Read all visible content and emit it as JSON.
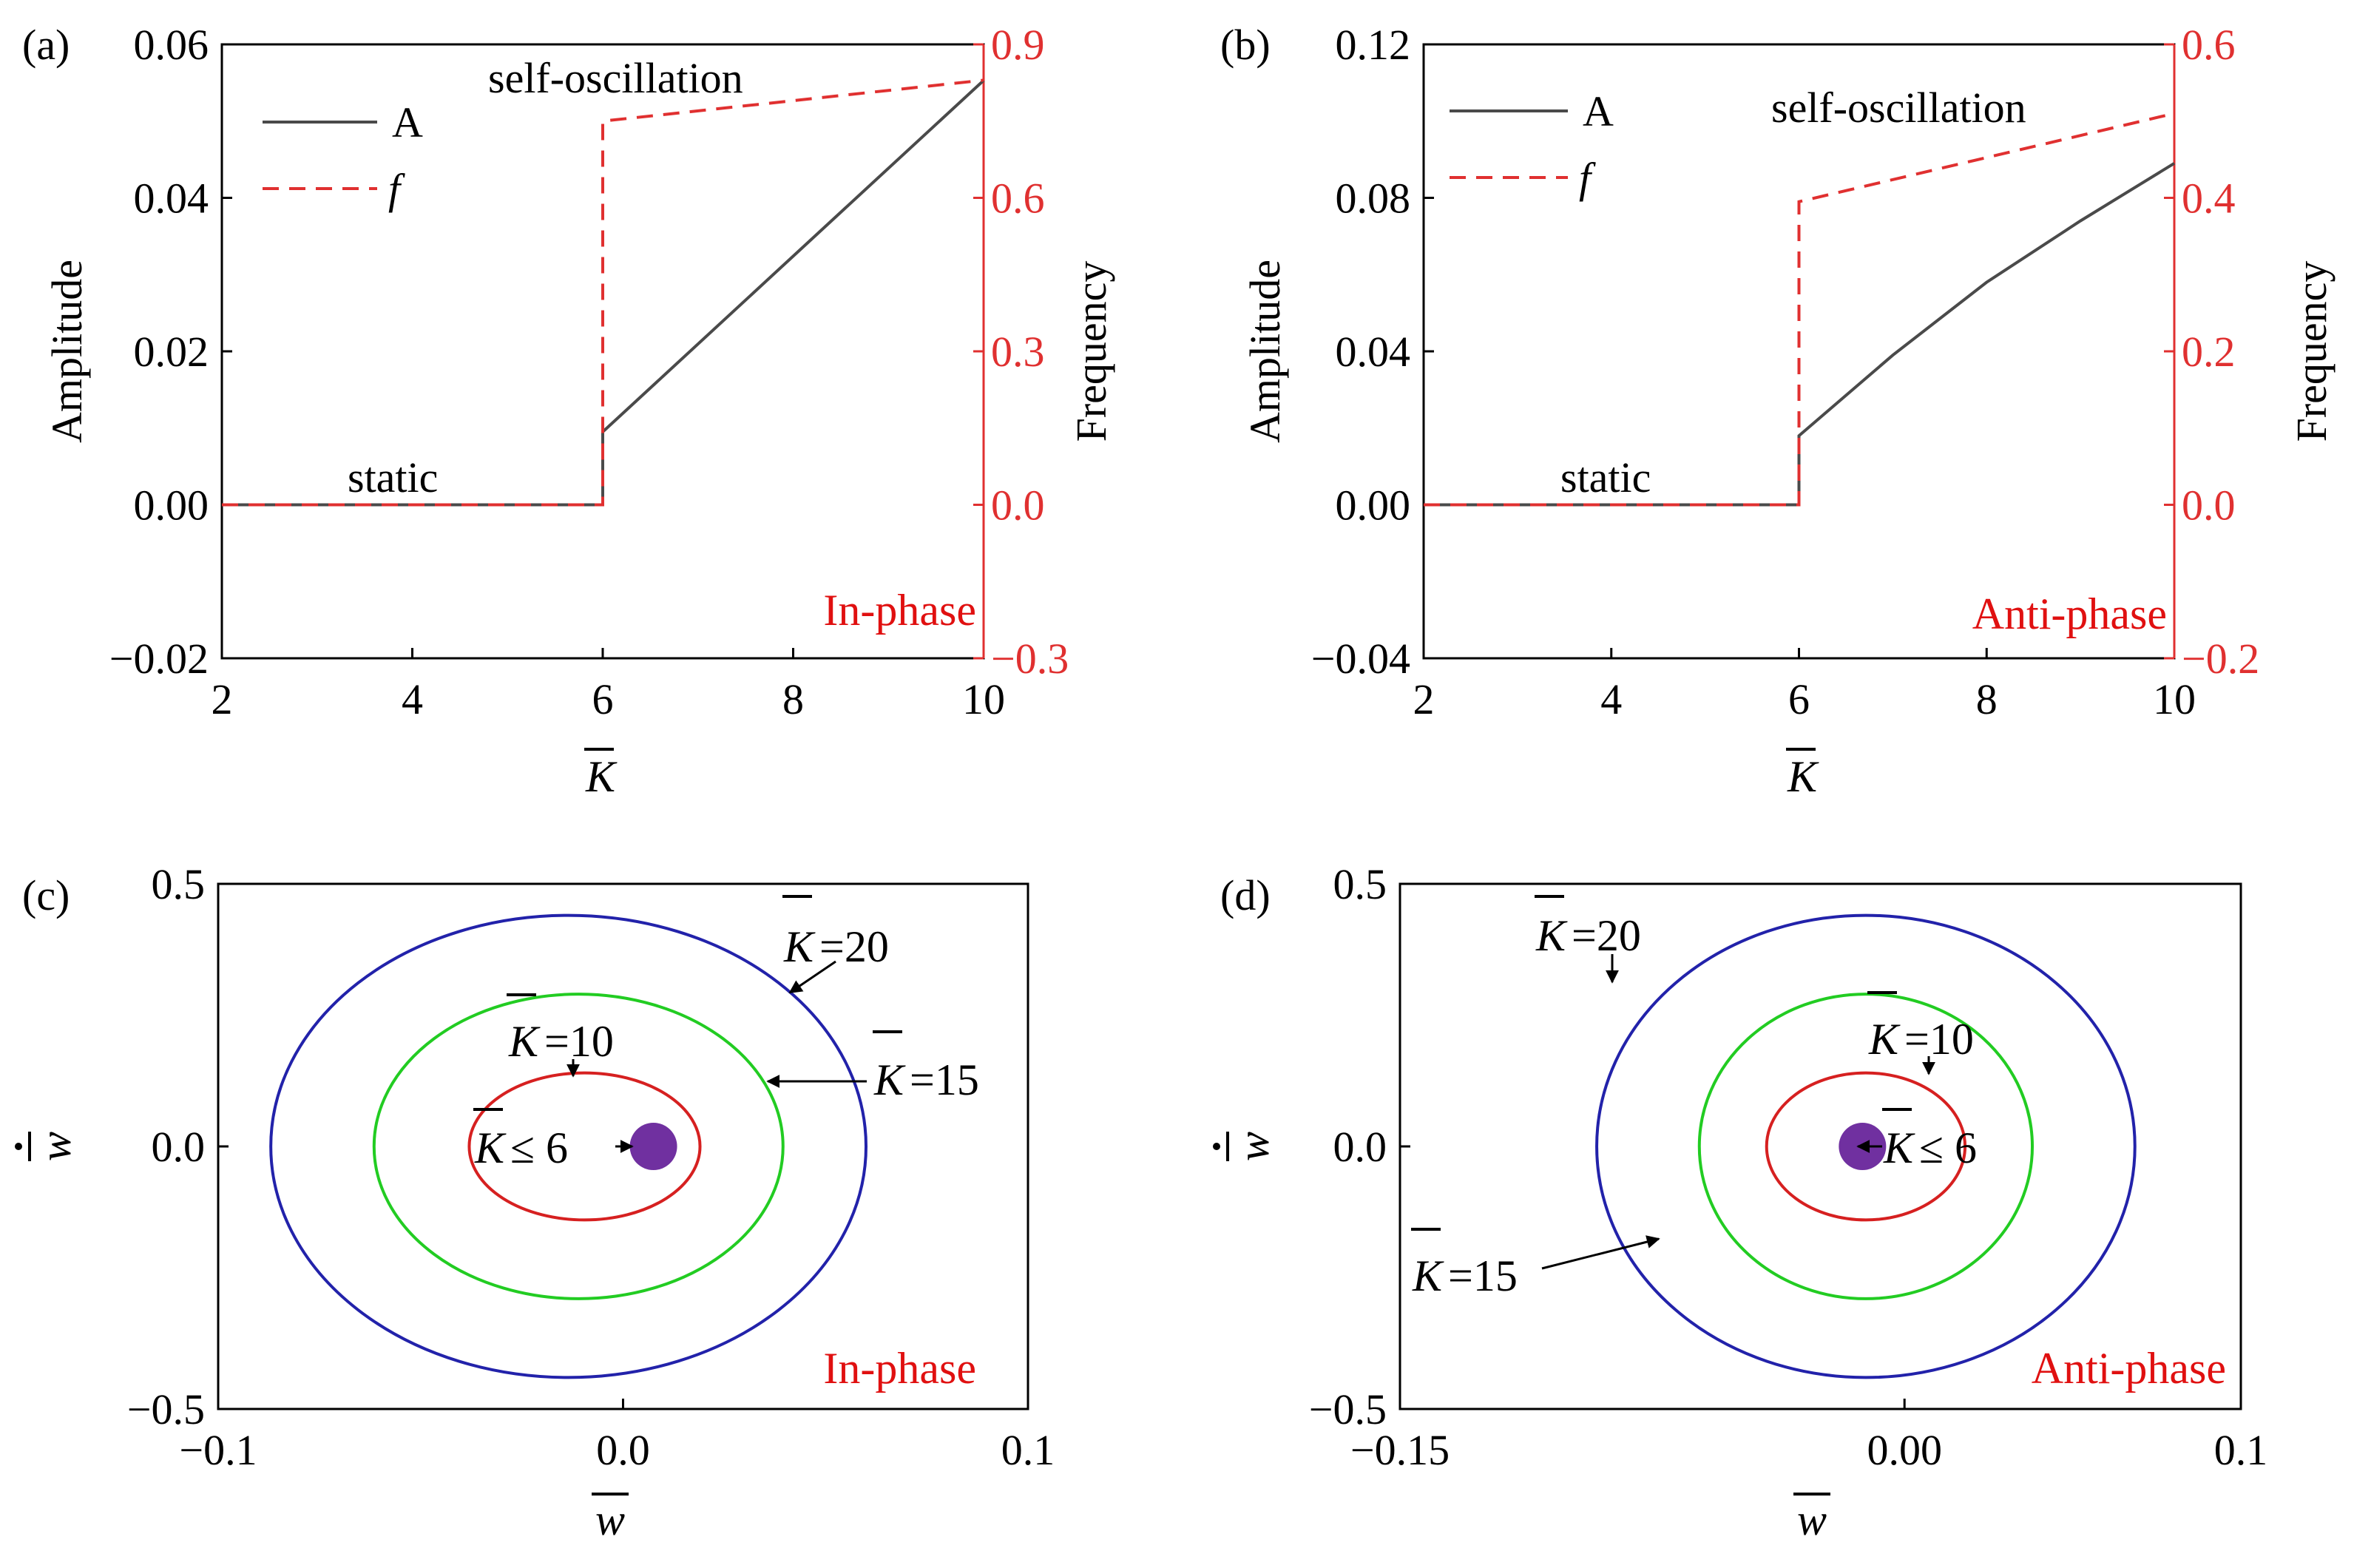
{
  "colors": {
    "amplitude": "#4a4a4a",
    "frequency": "#e03030",
    "axis": "#000000",
    "phase_label": "#e01010",
    "k20": "#2222aa",
    "k15": "#22cc22",
    "k10": "#d62020",
    "dot": "#7030a0"
  },
  "chart_data": [
    {
      "id": "a",
      "panel_label": "(a)",
      "type": "line",
      "title": "",
      "xlabel_symbol": "K",
      "ylabel": "Amplitude",
      "y2label": "Frequency",
      "xlim": [
        2,
        10
      ],
      "ylim": [
        -0.02,
        0.06
      ],
      "y2lim": [
        -0.3,
        0.9
      ],
      "x_ticks": [
        "2",
        "4",
        "6",
        "8",
        "10"
      ],
      "y_ticks": [
        "−0.02",
        "0.00",
        "0.02",
        "0.04",
        "0.06"
      ],
      "y2_ticks": [
        "−0.3",
        "0.0",
        "0.3",
        "0.6",
        "0.9"
      ],
      "legend": [
        "A",
        "f"
      ],
      "annotations": {
        "top": "self-oscillation",
        "static": "static",
        "phase": "In-phase"
      },
      "series": [
        {
          "name": "A",
          "axis": "left",
          "style": "solid",
          "x": [
            2,
            6,
            6,
            10
          ],
          "y": [
            0,
            0,
            0.0095,
            0.0553
          ]
        },
        {
          "name": "f",
          "axis": "right",
          "style": "dashed",
          "x": [
            2,
            6,
            6,
            10
          ],
          "y": [
            0,
            0,
            0.75,
            0.83
          ]
        }
      ]
    },
    {
      "id": "b",
      "panel_label": "(b)",
      "type": "line",
      "title": "",
      "xlabel_symbol": "K",
      "ylabel": "Amplitude",
      "y2label": "Frequency",
      "xlim": [
        2,
        10
      ],
      "ylim": [
        -0.04,
        0.12
      ],
      "y2lim": [
        -0.2,
        0.6
      ],
      "x_ticks": [
        "2",
        "4",
        "6",
        "8",
        "10"
      ],
      "y_ticks": [
        "−0.04",
        "0.00",
        "0.04",
        "0.08",
        "0.12"
      ],
      "y2_ticks": [
        "−0.2",
        "0.0",
        "0.2",
        "0.4",
        "0.6"
      ],
      "legend": [
        "A",
        "f"
      ],
      "annotations": {
        "top": "self-oscillation",
        "static": "static",
        "phase": "Anti-phase"
      },
      "series": [
        {
          "name": "A",
          "axis": "left",
          "style": "solid",
          "x": [
            2,
            6,
            6,
            7,
            8,
            9,
            10
          ],
          "y": [
            0,
            0,
            0.018,
            0.039,
            0.058,
            0.074,
            0.089
          ]
        },
        {
          "name": "f",
          "axis": "right",
          "style": "dashed",
          "x": [
            2,
            6,
            6,
            10
          ],
          "y": [
            0,
            0,
            0.395,
            0.51
          ]
        }
      ]
    },
    {
      "id": "c",
      "panel_label": "(c)",
      "type": "line",
      "title": "",
      "xlabel_symbol": "w",
      "ylabel_symbol": "w",
      "xlim": [
        -0.1,
        0.1
      ],
      "ylim": [
        -0.5,
        0.5
      ],
      "x_ticks": [
        "−0.1",
        "0.0",
        "0.1"
      ],
      "x_tick_values": [
        -0.1,
        0.0,
        0.1
      ],
      "y_ticks": [
        "−0.5",
        "0.0",
        "0.5"
      ],
      "y_tick_values": [
        -0.5,
        0.0,
        0.5
      ],
      "phase_label": "In-phase",
      "cycles": [
        {
          "label": "=20",
          "kbar": 20,
          "cx": -0.0135,
          "cy": 0.0,
          "rx": 0.0735,
          "ry": 0.44,
          "color_key": "k20"
        },
        {
          "label": "=15",
          "kbar": 15,
          "cx": -0.011,
          "cy": 0.0,
          "rx": 0.0505,
          "ry": 0.29,
          "color_key": "k15"
        },
        {
          "label": "=10",
          "kbar": 10,
          "cx": -0.0095,
          "cy": 0.0,
          "rx": 0.0285,
          "ry": 0.14,
          "color_key": "k10"
        }
      ],
      "fixed_point": {
        "label": "≤ 6",
        "x": 0.0075,
        "y": 0.0
      }
    },
    {
      "id": "d",
      "panel_label": "(d)",
      "type": "line",
      "title": "",
      "xlabel_symbol": "w",
      "ylabel_symbol": "w",
      "xlim": [
        -0.15,
        0.1
      ],
      "ylim": [
        -0.5,
        0.5
      ],
      "x_ticks": [
        "−0.15",
        "0.00",
        "0.1"
      ],
      "x_tick_values": [
        -0.15,
        0.0,
        0.1
      ],
      "y_ticks": [
        "−0.5",
        "0.0",
        "0.5"
      ],
      "y_tick_values": [
        -0.5,
        0.0,
        0.5
      ],
      "phase_label": "Anti-phase",
      "cycles": [
        {
          "label": "=20",
          "kbar": 20,
          "cx": -0.0115,
          "cy": 0.0,
          "rx": 0.08,
          "ry": 0.44,
          "color_key": "k20"
        },
        {
          "label": "=15",
          "kbar": 15,
          "cx": -0.0115,
          "cy": 0.0,
          "rx": 0.0495,
          "ry": 0.29,
          "color_key": "k15"
        },
        {
          "label": "=10",
          "kbar": 10,
          "cx": -0.0115,
          "cy": 0.0,
          "rx": 0.0295,
          "ry": 0.14,
          "color_key": "k10"
        }
      ],
      "fixed_point": {
        "label": "≤ 6",
        "x": -0.0125,
        "y": 0.0
      }
    }
  ]
}
